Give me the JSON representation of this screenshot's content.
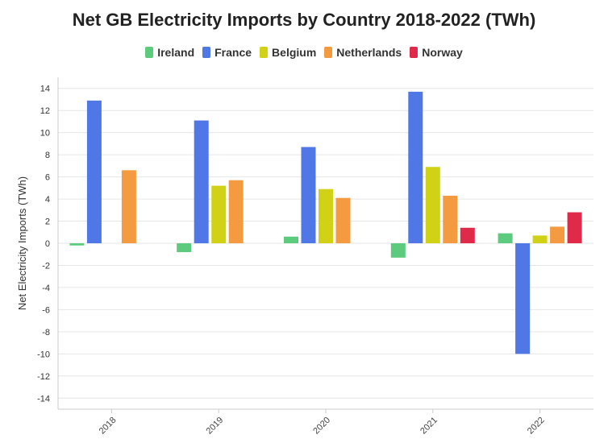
{
  "chart_data": {
    "type": "bar",
    "title": "Net GB Electricity Imports by Country 2018-2022 (TWh)",
    "xlabel": "",
    "ylabel": "Net Electricity Imports (TWh)",
    "categories": [
      "2018",
      "2019",
      "2020",
      "2021",
      "2022"
    ],
    "ylim": [
      -15,
      15
    ],
    "yticks": [
      14,
      12,
      10,
      8,
      6,
      4,
      2,
      0,
      -2,
      -4,
      -6,
      -8,
      -10,
      -12,
      -14
    ],
    "ytick_labels": [
      "14",
      "12",
      "10",
      "8",
      "6",
      "4",
      "2",
      "0",
      "-2",
      "-4",
      "-6",
      "-8",
      "-10",
      "-12",
      "-14"
    ],
    "grid": true,
    "legend_position": "top-center",
    "series": [
      {
        "name": "Ireland",
        "color": "#5ccb7d",
        "values": [
          -0.2,
          -0.8,
          0.6,
          -1.3,
          0.9
        ]
      },
      {
        "name": "France",
        "color": "#5077e6",
        "values": [
          12.9,
          11.1,
          8.7,
          13.7,
          -10.0
        ]
      },
      {
        "name": "Belgium",
        "color": "#d1d116",
        "values": [
          null,
          5.2,
          4.9,
          6.9,
          0.7
        ]
      },
      {
        "name": "Netherlands",
        "color": "#f49a40",
        "values": [
          6.6,
          5.7,
          4.1,
          4.3,
          1.5
        ]
      },
      {
        "name": "Norway",
        "color": "#df2a4a",
        "values": [
          null,
          null,
          null,
          1.4,
          2.8
        ]
      }
    ]
  }
}
